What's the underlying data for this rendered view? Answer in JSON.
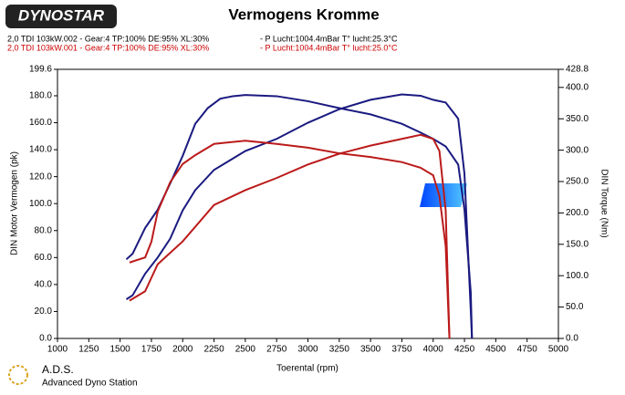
{
  "header": {
    "logo": "DYNOSTAR",
    "footer_title": "A.D.S.",
    "footer_subtitle": "Advanced Dyno Station"
  },
  "chart_data": {
    "type": "line",
    "title": "Vermogens Kromme",
    "runs": [
      {
        "label": "2,0 TDI 103kW.002 - Gear:4 TP:100% DE:95% XL:30%",
        "conditions": "- P Lucht:1004.4mBar T° lucht:25.3°C",
        "color": "#000000"
      },
      {
        "label": "2,0 TDI 103kW.001 - Gear:4 TP:100% DE:95% XL:30%",
        "conditions": "- P Lucht:1004.4mBar T° lucht:25.0°C",
        "color": "#cc0000"
      }
    ],
    "xlabel": "Toerental (rpm)",
    "ylabel": "DIN Motor Vermogen (pk)",
    "y2label": "DIN Torque (Nm)",
    "xlim": [
      1000,
      5000
    ],
    "xticks": [
      1000,
      1250,
      1500,
      1750,
      2000,
      2250,
      2500,
      2750,
      3000,
      3250,
      3500,
      3750,
      4000,
      4250,
      4500,
      4750,
      5000
    ],
    "ylim": [
      0,
      199.6
    ],
    "yticks": [
      {
        "value": 0,
        "label": "0.0"
      },
      {
        "value": 20,
        "label": "20.0"
      },
      {
        "value": 40,
        "label": "40.0"
      },
      {
        "value": 60,
        "label": "60.0"
      },
      {
        "value": 80,
        "label": "80.0"
      },
      {
        "value": 100,
        "label": "100.0"
      },
      {
        "value": 120,
        "label": "120.0"
      },
      {
        "value": 140,
        "label": "140.0"
      },
      {
        "value": 160,
        "label": "160.0"
      },
      {
        "value": 180,
        "label": "180.0"
      },
      {
        "value": 199.6,
        "label": "199.6"
      }
    ],
    "y2lim": [
      0,
      428.8
    ],
    "y2ticks": [
      {
        "value": 0,
        "label": "0.0"
      },
      {
        "value": 50,
        "label": "50.0"
      },
      {
        "value": 100,
        "label": "100.0"
      },
      {
        "value": 150,
        "label": "150.0"
      },
      {
        "value": 200,
        "label": "200.0"
      },
      {
        "value": 250,
        "label": "250.0"
      },
      {
        "value": 300,
        "label": "300.0"
      },
      {
        "value": 350,
        "label": "350.0"
      },
      {
        "value": 400,
        "label": "400.0"
      },
      {
        "value": 428.8,
        "label": "428.8"
      }
    ],
    "series": [
      {
        "color": "#1a1a80",
        "axis": "y2",
        "x": [
          1550,
          1600,
          1700,
          1800,
          1900,
          2000,
          2100,
          2200,
          2300,
          2400,
          2500,
          2750,
          3000,
          3250,
          3500,
          3750,
          3900,
          4000,
          4100,
          4200,
          4250,
          4300,
          4310
        ],
        "values": [
          126,
          135,
          176,
          205,
          247,
          291,
          342,
          367,
          382,
          386,
          388,
          386,
          378,
          367,
          357,
          342,
          328,
          318,
          306,
          277,
          205,
          74,
          0
        ]
      },
      {
        "color": "#1a1a80",
        "x": [
          1550,
          1600,
          1700,
          1800,
          1900,
          2000,
          2100,
          2250,
          2500,
          2750,
          3000,
          3250,
          3500,
          3750,
          3900,
          4000,
          4100,
          4200,
          4250,
          4300,
          4310
        ],
        "values": [
          29,
          32,
          48,
          60,
          74,
          95,
          110,
          125,
          139,
          148,
          160,
          170,
          177,
          181,
          180,
          177,
          175,
          163,
          122,
          21,
          0
        ]
      },
      {
        "color": "#bb1a1a",
        "axis": "y2",
        "x": [
          1575,
          1700,
          1750,
          1800,
          1900,
          2000,
          2100,
          2250,
          2500,
          2750,
          3000,
          3250,
          3500,
          3750,
          3900,
          4000,
          4050,
          4100,
          4130
        ],
        "values": [
          121,
          129,
          154,
          202,
          249,
          278,
          292,
          310,
          315,
          310,
          304,
          295,
          289,
          281,
          272,
          260,
          227,
          147,
          0
        ]
      },
      {
        "color": "#bb1a1a",
        "x": [
          1575,
          1700,
          1750,
          1800,
          2000,
          2250,
          2500,
          2750,
          3000,
          3250,
          3500,
          3750,
          3900,
          4000,
          4050,
          4100,
          4130
        ],
        "values": [
          28,
          35,
          45,
          55,
          72,
          99,
          110,
          119,
          129,
          137,
          143,
          148,
          151,
          148,
          139,
          95,
          0
        ]
      }
    ]
  }
}
